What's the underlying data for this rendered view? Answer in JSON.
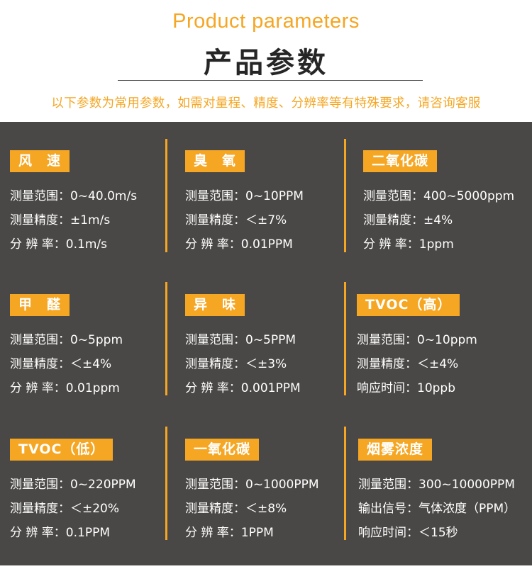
{
  "header": {
    "title_en": "Product parameters",
    "title_cn": "产品参数",
    "subtitle": "以下参数为常用参数，如需对量程、精度、分辨率等有特殊要求，请咨询客服"
  },
  "cards": [
    {
      "title": "风　速",
      "rows": [
        "测量范围：0~40.0m/s",
        "测量精度：±1m/s",
        "分 辨 率：0.1m/s"
      ]
    },
    {
      "title": "臭　氧",
      "rows": [
        "测量范围：0~10PPM",
        "测量精度：＜±7%",
        "分 辨 率：0.01PPM"
      ]
    },
    {
      "title": "二氧化碳",
      "rows": [
        "测量范围：400~5000ppm",
        "测量精度：±4%",
        "分 辨 率：1ppm"
      ]
    },
    {
      "title": "甲　醛",
      "rows": [
        "测量范围：0~5ppm",
        "测量精度：＜±4%",
        "分 辨 率：0.01ppm"
      ]
    },
    {
      "title": "异　味",
      "rows": [
        "测量范围：0~5PPM",
        "测量精度：＜±3%",
        "分 辨 率：0.001PPM"
      ]
    },
    {
      "title": "TVOC（高）",
      "rows": [
        "测量范围：0~10ppm",
        "测量精度：＜±4%",
        "响应时间：10ppb"
      ]
    },
    {
      "title": "TVOC（低）",
      "rows": [
        "测量范围：0~220PPM",
        "测量精度：＜±20%",
        "分 辨 率：0.1PPM"
      ]
    },
    {
      "title": "一氧化碳",
      "rows": [
        "测量范围：0~1000PPM",
        "测量精度：＜±8%",
        "分 辨 率：1PPM"
      ]
    },
    {
      "title": "烟雾浓度",
      "rows": [
        "测量范围：300~10000PPM",
        "输出信号：气体浓度（PPM）",
        "响应时间：＜15秒"
      ]
    }
  ],
  "colors": {
    "accent": "#f5a623",
    "panel": "#4a4846",
    "heading": "#262626"
  }
}
